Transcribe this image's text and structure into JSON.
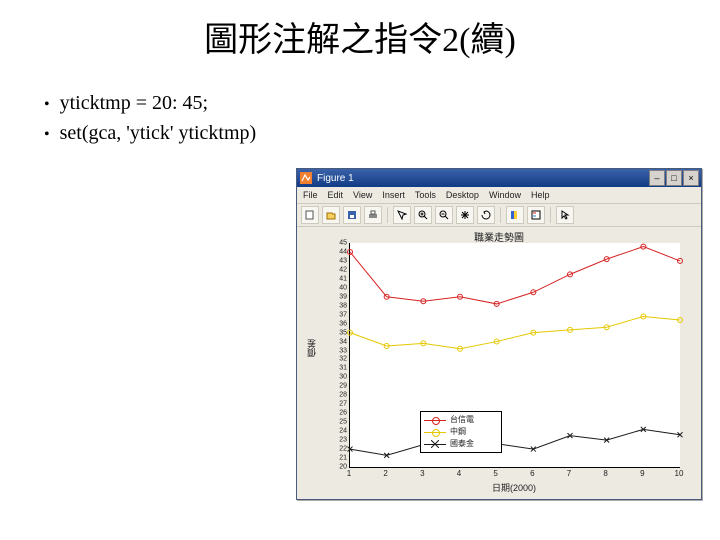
{
  "slide": {
    "title": "圖形注解之指令2(續)",
    "bullets": [
      "yticktmp = 20: 45;",
      "set(gca, 'ytick' yticktmp)"
    ]
  },
  "window": {
    "title": "Figure 1",
    "menus": [
      "File",
      "Edit",
      "View",
      "Insert",
      "Tools",
      "Desktop",
      "Window",
      "Help"
    ],
    "toolbar_icons": [
      "new",
      "open",
      "save",
      "print",
      "sep",
      "data-cursor",
      "zoom-in",
      "zoom-out",
      "pan",
      "rotate",
      "sep",
      "colorbar",
      "legend",
      "sep",
      "cursor"
    ],
    "win_buttons": [
      "–",
      "□",
      "×"
    ]
  },
  "chart": {
    "title": "職業走勢圖",
    "xlabel": "日期(2000)",
    "ylabel": "價差",
    "type": "line",
    "background_color": "#ffffff",
    "panel_color": "#edeae2",
    "axis_color": "#000000",
    "xlim": [
      1,
      10
    ],
    "ylim": [
      20,
      45
    ],
    "xticks": [
      1,
      2,
      3,
      4,
      5,
      6,
      7,
      8,
      9,
      10
    ],
    "yticks": [
      20,
      21,
      22,
      23,
      24,
      25,
      26,
      27,
      28,
      29,
      30,
      31,
      32,
      33,
      34,
      35,
      36,
      37,
      38,
      39,
      40,
      41,
      42,
      43,
      44,
      45
    ],
    "tick_fontsize": 7,
    "label_fontsize": 9,
    "title_fontsize": 10,
    "line_width": 1,
    "marker_size": 5,
    "series": [
      {
        "name": "台信電",
        "color": "#d62222",
        "marker": "circle",
        "x": [
          1,
          2,
          3,
          4,
          5,
          6,
          7,
          8,
          9,
          10
        ],
        "y": [
          44.0,
          39.0,
          38.5,
          39.0,
          38.2,
          39.5,
          41.5,
          43.2,
          44.6,
          43.0
        ]
      },
      {
        "name": "中鋼",
        "color": "#e6c800",
        "marker": "circle",
        "x": [
          1,
          2,
          3,
          4,
          5,
          6,
          7,
          8,
          9,
          10
        ],
        "y": [
          35.0,
          33.5,
          33.8,
          33.2,
          34.0,
          35.0,
          35.3,
          35.6,
          36.8,
          36.4
        ]
      },
      {
        "name": "國泰金",
        "color": "#1a1a1a",
        "marker": "x",
        "x": [
          1,
          2,
          3,
          4,
          5,
          6,
          7,
          8,
          9,
          10
        ],
        "y": [
          22.0,
          21.3,
          22.5,
          22.0,
          22.6,
          22.0,
          23.5,
          23.0,
          24.2,
          23.6
        ]
      }
    ],
    "legend": {
      "position": "inside-lower-left",
      "border_color": "#000000",
      "bg_color": "#ffffff"
    }
  }
}
